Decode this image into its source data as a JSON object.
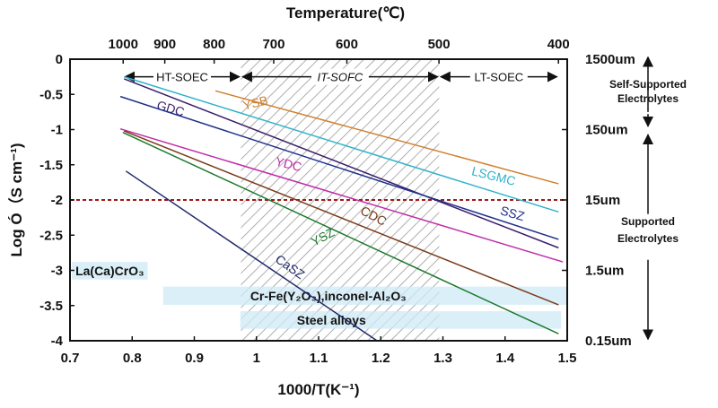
{
  "chart_data": {
    "type": "line",
    "title": "Temperature(℃)",
    "xlabel": "1000/T(K⁻¹)",
    "ylabel": "Log Ó（S cm⁻¹)",
    "xlim": [
      0.7,
      1.5
    ],
    "ylim": [
      -4,
      0
    ],
    "x_ticks": [
      "0.7",
      "0.8",
      "0.9",
      "1",
      "1.1",
      "1.2",
      "1.3",
      "1.4",
      "1.5"
    ],
    "y_ticks": [
      "0",
      "-0.5",
      "-1",
      "-1.5",
      "-2",
      "-2.5",
      "-3",
      "-3.5",
      "-4"
    ],
    "top_axis": {
      "label": "Temperature(℃)",
      "ticks": [
        1000,
        900,
        800,
        700,
        600,
        500,
        400
      ]
    },
    "right_axis": {
      "ticks": [
        {
          "label": "1500um",
          "y": 0
        },
        {
          "label": "150um",
          "y": -1
        },
        {
          "label": "15um",
          "y": -2
        },
        {
          "label": "1.5um",
          "y": -3
        },
        {
          "label": "0.15um",
          "y": -4
        }
      ],
      "groups": [
        {
          "label_lines": [
            "Self-Supported",
            "Electrolytes"
          ],
          "from": 0,
          "to": -1
        },
        {
          "label_lines": [
            "Supported",
            "Electrolytes"
          ],
          "from": -1,
          "to": -4
        }
      ]
    },
    "regions": [
      {
        "label": "HT-SOEC",
        "x": [
          0.786,
          0.975
        ]
      },
      {
        "label": "IT-SOFC",
        "x": [
          0.975,
          1.294
        ],
        "hatched": true
      },
      {
        "label": "LT-SOEC",
        "x": [
          1.294,
          1.486
        ]
      }
    ],
    "reference_line": {
      "y": -2,
      "color": "#a01818",
      "style": "dashed"
    },
    "series": [
      {
        "name": "YSB",
        "color": "#d0812e",
        "x": [
          0.934,
          1.486
        ],
        "y": [
          -0.45,
          -1.77
        ]
      },
      {
        "name": "LSGMC",
        "color": "#2eb3cc",
        "x": [
          0.787,
          1.486
        ],
        "y": [
          -0.25,
          -2.17
        ]
      },
      {
        "name": "GDC",
        "color": "#3a1f6a",
        "x": [
          0.787,
          1.486
        ],
        "y": [
          -0.28,
          -2.68
        ]
      },
      {
        "name": "SSZ",
        "color": "#1f2f8a",
        "x": [
          0.781,
          1.486
        ],
        "y": [
          -0.53,
          -2.56
        ]
      },
      {
        "name": "YDC",
        "color": "#c02aa8",
        "x": [
          0.781,
          1.493
        ],
        "y": [
          -0.99,
          -2.88
        ]
      },
      {
        "name": "CDC",
        "color": "#7a3a1a",
        "x": [
          0.787,
          1.486
        ],
        "y": [
          -1.02,
          -3.49
        ]
      },
      {
        "name": "YSZ",
        "color": "#1d7a2e",
        "x": [
          0.785,
          1.486
        ],
        "y": [
          -1.04,
          -3.9
        ]
      },
      {
        "name": "CaSZ",
        "color": "#1f2a6a",
        "x": [
          0.79,
          1.194
        ],
        "y": [
          -1.59,
          -4.0
        ]
      }
    ],
    "bands": [
      {
        "label": "La(Ca)CrO₃",
        "x": [
          0.703,
          0.825
        ],
        "y": [
          -2.88,
          -3.13
        ]
      },
      {
        "label": "Cr-Fe(Y₂O₃),inconel-Al₂O₃",
        "x": [
          0.85,
          1.5
        ],
        "y": [
          -3.23,
          -3.49
        ]
      },
      {
        "label": "Steel alloys",
        "x": [
          0.974,
          1.49
        ],
        "y": [
          -3.58,
          -3.83
        ]
      }
    ],
    "grid": false,
    "legend": "none (inline labels)"
  }
}
